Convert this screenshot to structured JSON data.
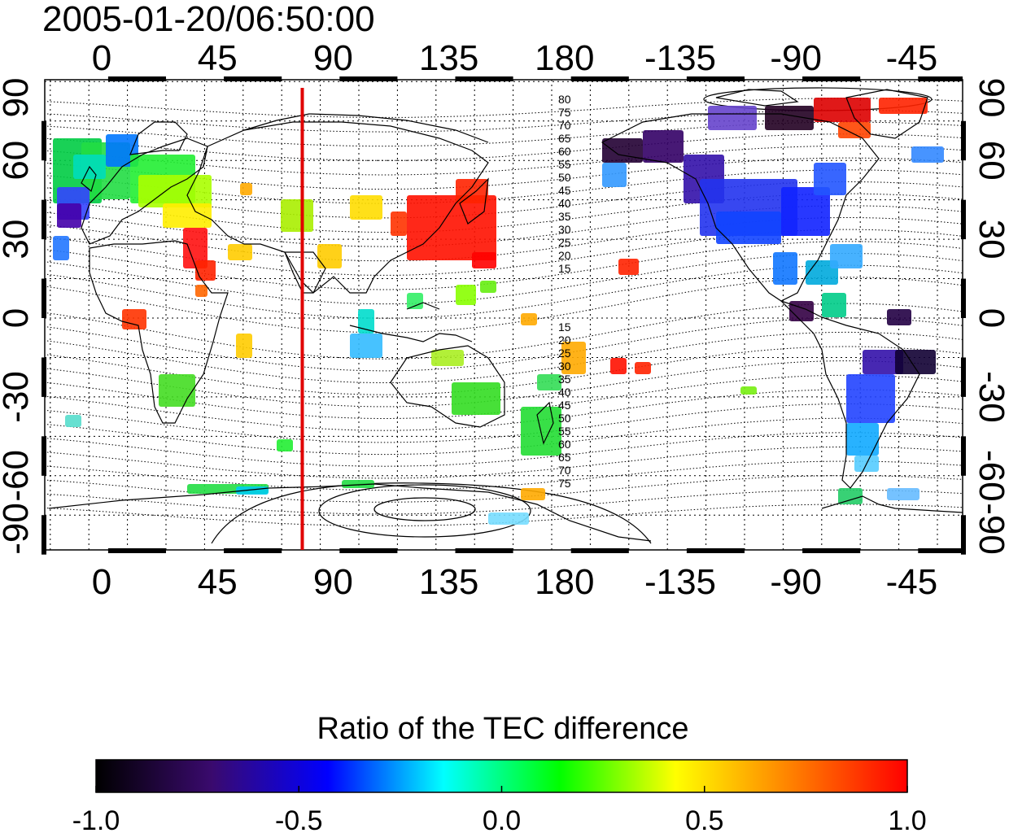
{
  "timestamp": "2005-01-20/06:50:00",
  "map": {
    "lon_ticks": [
      "0",
      "45",
      "90",
      "135",
      "180",
      "-135",
      "-90",
      "-45"
    ],
    "lat_ticks": [
      "90",
      "60",
      "30",
      "0",
      "-30",
      "-60",
      "-90"
    ],
    "marker_line_lon": 78,
    "contour_labels_north": [
      "80",
      "75",
      "70",
      "65",
      "60",
      "55",
      "50",
      "45",
      "40",
      "35",
      "30",
      "25",
      "20",
      "15"
    ],
    "contour_labels_south": [
      "15",
      "20",
      "25",
      "30",
      "35",
      "40",
      "45",
      "50",
      "55",
      "60",
      "65",
      "70",
      "75"
    ],
    "colors": {
      "marker_line": "#e00000",
      "coast": "#000000"
    }
  },
  "colorbar": {
    "title": "Ratio of the TEC difference",
    "min": -1.0,
    "max": 1.0,
    "tick_labels": [
      "-1.0",
      "-0.5",
      "0.0",
      "0.5",
      "1.0"
    ],
    "stops": [
      "#000000",
      "#3a0a6e",
      "#0000ff",
      "#00ffff",
      "#00ff00",
      "#ffff00",
      "#ff8000",
      "#ff0000"
    ]
  }
}
